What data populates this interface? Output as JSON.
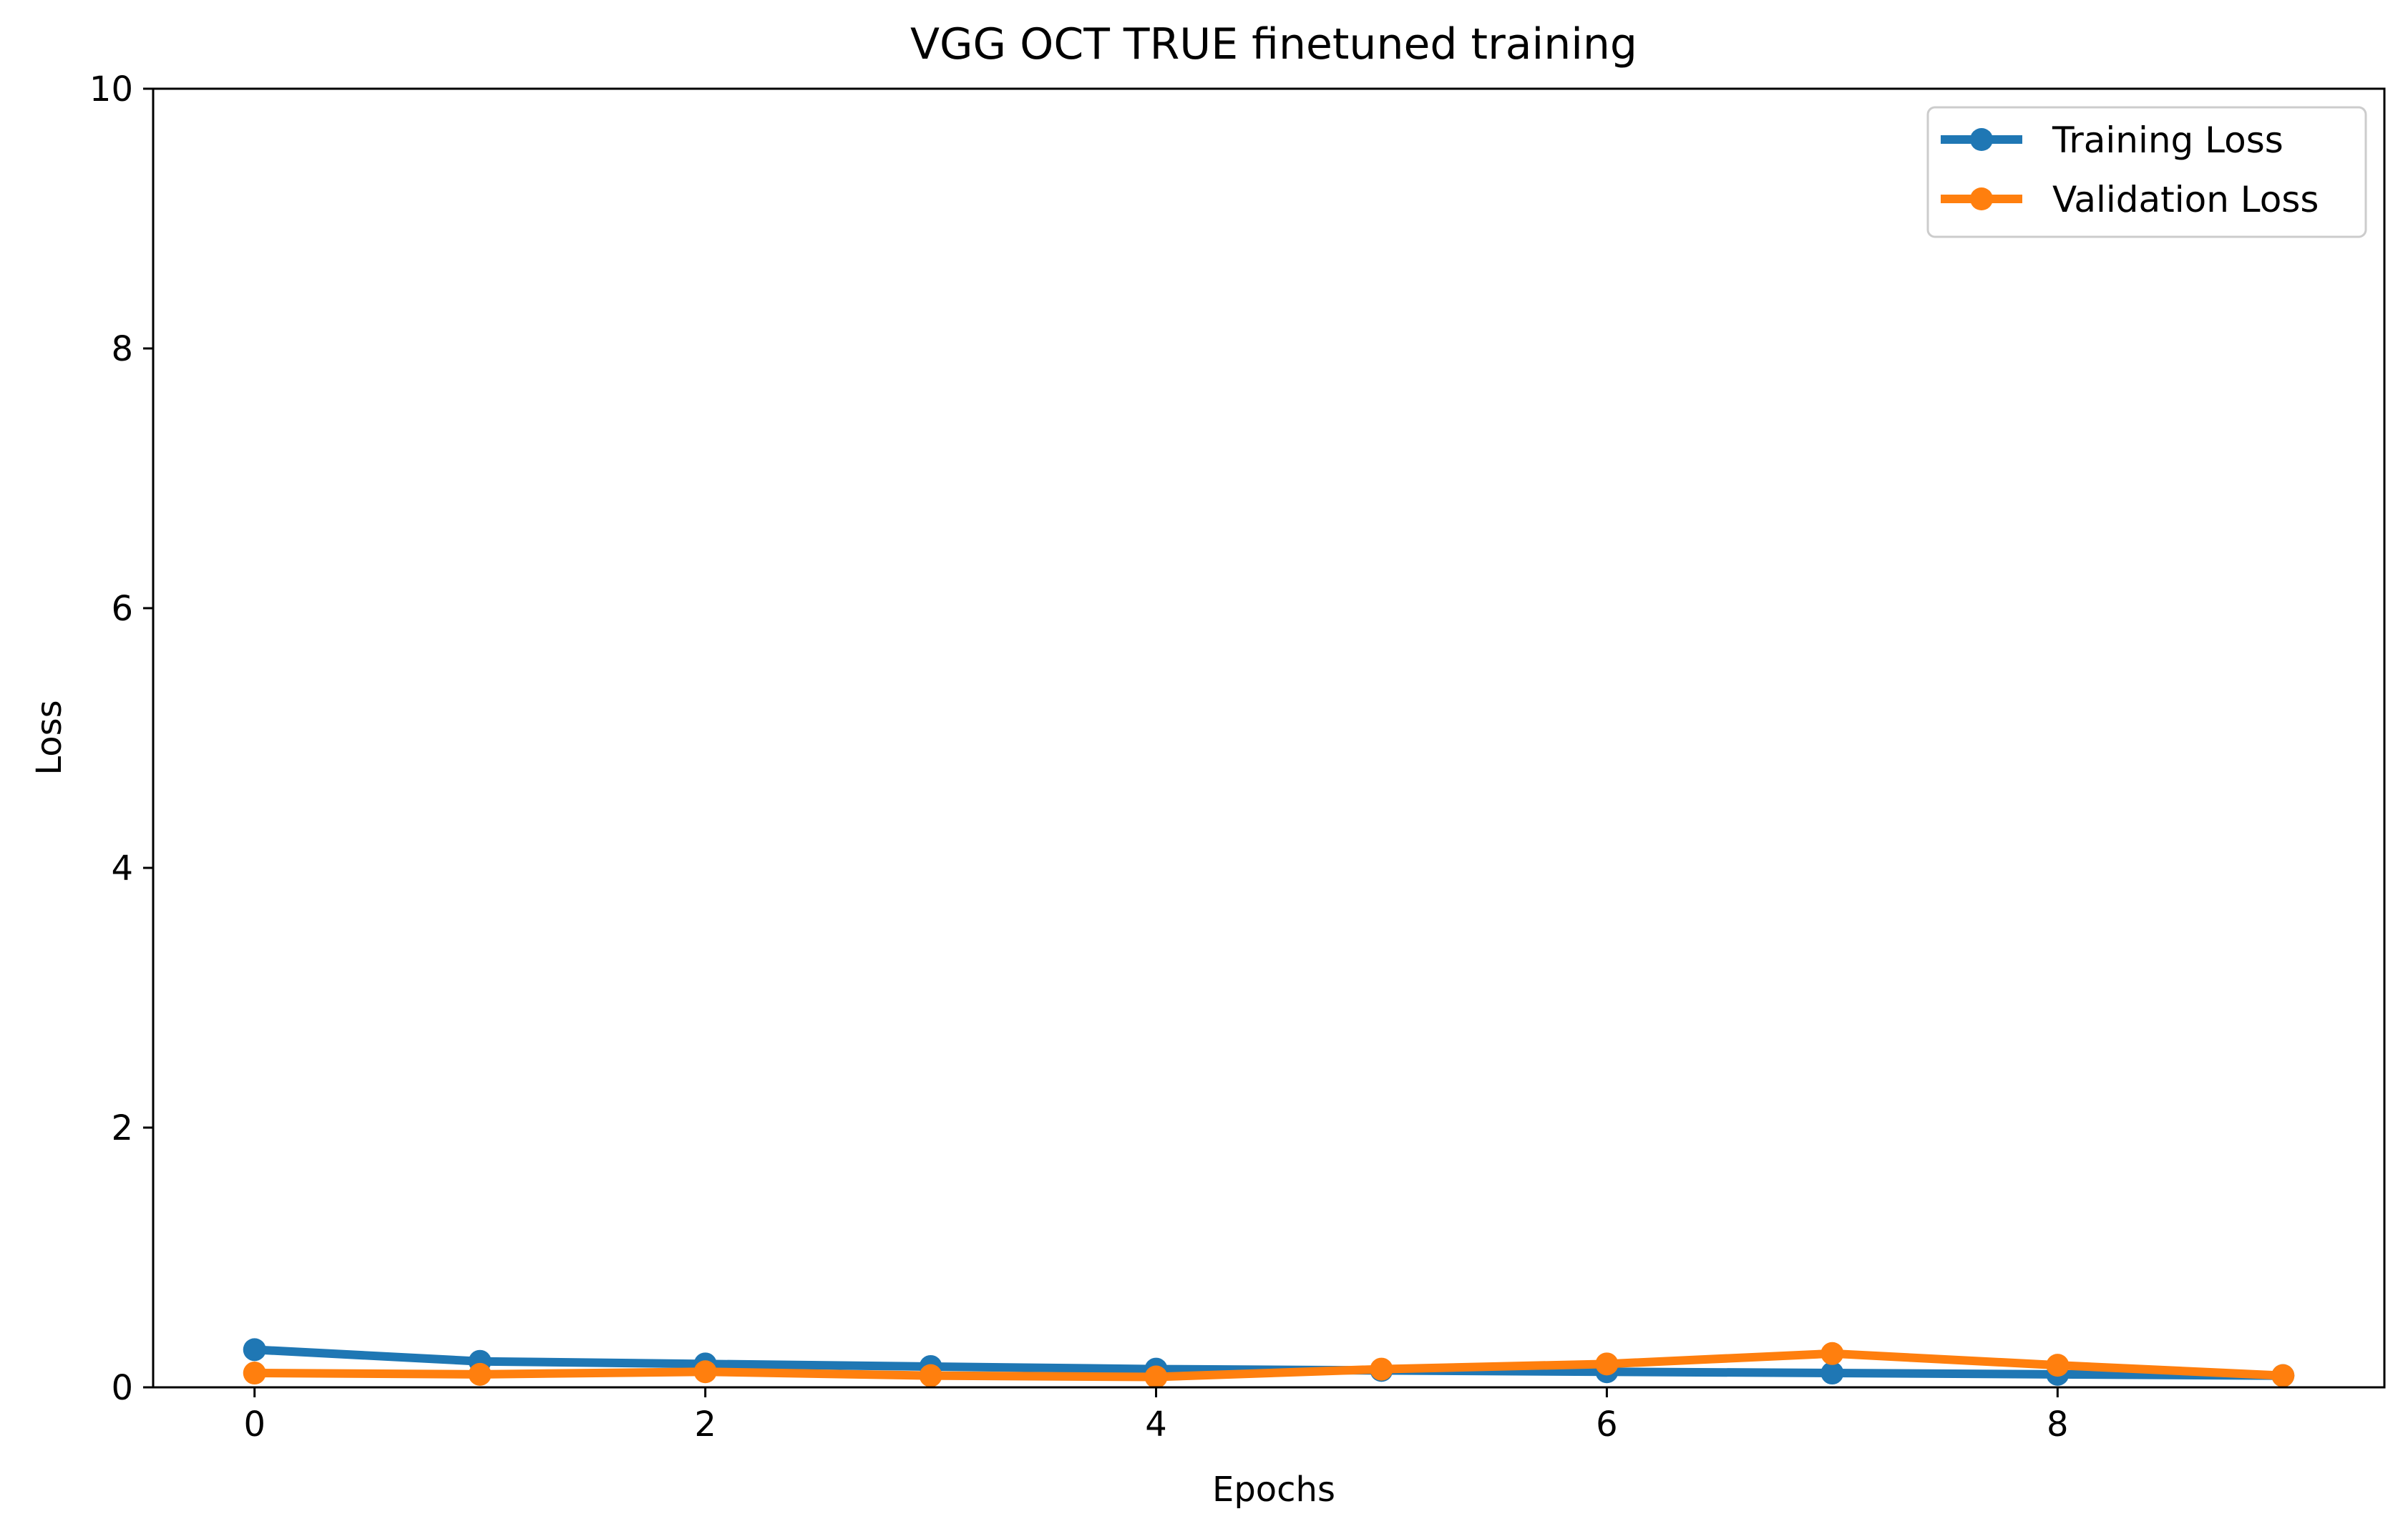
{
  "chart_data": {
    "type": "line",
    "title": "VGG OCT TRUE finetuned training",
    "xlabel": "Epochs",
    "ylabel": "Loss",
    "x": [
      0,
      1,
      2,
      3,
      4,
      5,
      6,
      7,
      8,
      9
    ],
    "xlim": [
      -0.45,
      9.45
    ],
    "ylim": [
      0,
      10
    ],
    "xticks": [
      0,
      2,
      4,
      6,
      8
    ],
    "yticks": [
      0,
      2,
      4,
      6,
      8,
      10
    ],
    "series": [
      {
        "name": "Training Loss",
        "color": "#1f77b4",
        "values": [
          0.29,
          0.2,
          0.18,
          0.16,
          0.14,
          0.13,
          0.12,
          0.11,
          0.1,
          0.09
        ]
      },
      {
        "name": "Validation Loss",
        "color": "#ff7f0e",
        "values": [
          0.11,
          0.1,
          0.12,
          0.09,
          0.08,
          0.14,
          0.18,
          0.26,
          0.17,
          0.09
        ]
      }
    ],
    "grid": false,
    "legend_position": "top-right"
  }
}
